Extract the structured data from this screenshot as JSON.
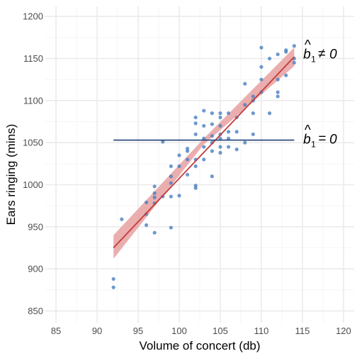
{
  "chart_data": {
    "type": "scatter",
    "xlabel": "Volume of concert (db)",
    "ylabel": "Ears ringing (mins)",
    "xlim": [
      83.7,
      121.3
    ],
    "ylim": [
      836,
      1212
    ],
    "xticks": [
      85,
      90,
      95,
      100,
      105,
      110,
      115,
      120
    ],
    "yticks": [
      850,
      900,
      950,
      1000,
      1050,
      1100,
      1150,
      1200
    ],
    "grid": true,
    "colors": {
      "points": "#4a7fc1",
      "fit_line": "#c23b3b",
      "ci_band": "#e8a0a0",
      "null_line": "#1f3f75",
      "grid_major": "#ebebeb",
      "grid_minor": "#f5f5f5"
    },
    "fit_line": {
      "x": [
        92,
        114
      ],
      "y": [
        925,
        1152
      ]
    },
    "ci_band": {
      "x": [
        92,
        103,
        114
      ],
      "upper": [
        940,
        1055,
        1163
      ],
      "lower": [
        912,
        1048,
        1141
      ]
    },
    "null_line": {
      "x": [
        92,
        114
      ],
      "y": 1053
    },
    "annotations": [
      {
        "id": "h1",
        "base": "b",
        "hat": "^",
        "sub": "1",
        "rel": "≠",
        "rhs": "0",
        "x": 115.1,
        "y": 1150
      },
      {
        "id": "h0",
        "base": "b",
        "hat": "^",
        "sub": "1",
        "rel": "=",
        "rhs": "0",
        "x": 115.1,
        "y": 1049
      }
    ],
    "points": [
      [
        92,
        888
      ],
      [
        92,
        878
      ],
      [
        93,
        959
      ],
      [
        96,
        979
      ],
      [
        96,
        965
      ],
      [
        96,
        952
      ],
      [
        97,
        943
      ],
      [
        97,
        978
      ],
      [
        97,
        985
      ],
      [
        97,
        990
      ],
      [
        97,
        998
      ],
      [
        98,
        986
      ],
      [
        98,
        1051
      ],
      [
        99,
        949
      ],
      [
        99,
        986
      ],
      [
        99,
        1002
      ],
      [
        99,
        1010
      ],
      [
        99,
        1022
      ],
      [
        100,
        987
      ],
      [
        100,
        1022
      ],
      [
        100,
        1035
      ],
      [
        101,
        1012
      ],
      [
        101,
        1030
      ],
      [
        101,
        1040
      ],
      [
        101,
        1043
      ],
      [
        102,
        996
      ],
      [
        102,
        999
      ],
      [
        102,
        1022
      ],
      [
        102,
        1030
      ],
      [
        102,
        1060
      ],
      [
        102,
        1073
      ],
      [
        102,
        1080
      ],
      [
        103,
        1030
      ],
      [
        103,
        1045
      ],
      [
        103,
        1055
      ],
      [
        103,
        1070
      ],
      [
        103,
        1088
      ],
      [
        104,
        1010
      ],
      [
        104,
        1040
      ],
      [
        104,
        1050
      ],
      [
        104,
        1058
      ],
      [
        104,
        1072
      ],
      [
        104,
        1085
      ],
      [
        105,
        1038
      ],
      [
        105,
        1045
      ],
      [
        105,
        1055
      ],
      [
        105,
        1060
      ],
      [
        105,
        1070
      ],
      [
        105,
        1080
      ],
      [
        105,
        1085
      ],
      [
        106,
        1045
      ],
      [
        106,
        1055
      ],
      [
        106,
        1063
      ],
      [
        106,
        1085
      ],
      [
        107,
        1042
      ],
      [
        107,
        1063
      ],
      [
        107,
        1080
      ],
      [
        108,
        1050
      ],
      [
        108,
        1095
      ],
      [
        108,
        1120
      ],
      [
        109,
        1060
      ],
      [
        109,
        1085
      ],
      [
        109,
        1100
      ],
      [
        109,
        1105
      ],
      [
        110,
        1110
      ],
      [
        110,
        1125
      ],
      [
        110,
        1140
      ],
      [
        110,
        1163
      ],
      [
        111,
        1085
      ],
      [
        111,
        1150
      ],
      [
        112,
        1105
      ],
      [
        112,
        1110
      ],
      [
        112,
        1125
      ],
      [
        112,
        1155
      ],
      [
        113,
        1130
      ],
      [
        113,
        1160
      ],
      [
        113,
        1158
      ],
      [
        114,
        1145
      ],
      [
        114,
        1150
      ],
      [
        114,
        1165
      ]
    ]
  }
}
